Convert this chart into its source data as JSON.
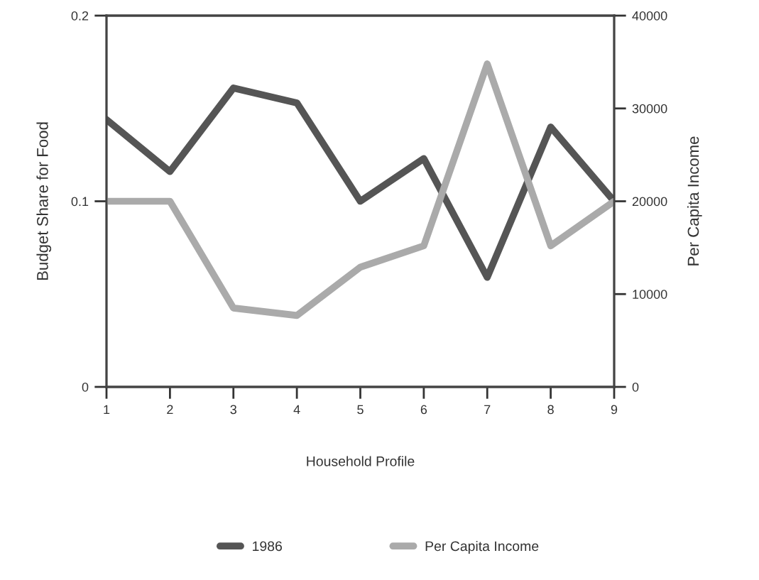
{
  "chart_data": {
    "type": "line",
    "xlabel": "Household Profile",
    "ylabel": "Budget Share for Food",
    "y2label": "Per Capita Income",
    "x": [
      1,
      2,
      3,
      4,
      5,
      6,
      7,
      8,
      9
    ],
    "xlim": [
      1,
      9
    ],
    "xticks": [
      1,
      2,
      3,
      4,
      5,
      6,
      7,
      8,
      9
    ],
    "ylim": [
      0,
      0.2
    ],
    "yticks": [
      0,
      0.1,
      0.2
    ],
    "y2lim": [
      0,
      40000
    ],
    "y2ticks": [
      0,
      10000,
      20000,
      30000,
      40000
    ],
    "series": [
      {
        "name": "1986",
        "color": "#555555",
        "values": [
          0.144,
          0.116,
          0.161,
          0.153,
          0.1,
          0.123,
          0.059,
          0.14,
          0.1
        ]
      },
      {
        "name": "Per Capita Income",
        "color": "#aaaaaa",
        "axis": "y2",
        "values": [
          20000,
          20000,
          8500,
          7700,
          12900,
          15200,
          34800,
          15200,
          20000
        ]
      }
    ],
    "legend": "bottom",
    "grid": false,
    "marker": "none",
    "line_style": "solid"
  }
}
